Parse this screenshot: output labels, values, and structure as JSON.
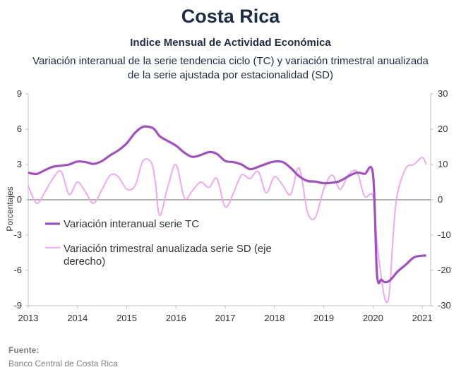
{
  "header": {
    "title": "Costa Rica",
    "subtitle": "Indice Mensual de  Actividad Económica",
    "description_line1": "Variación interanual de la serie tendencia ciclo (TC) y variación trimestral anualizada",
    "description_line2": "de la serie ajustada por estacionalidad (SD)"
  },
  "source": {
    "heading": "Fuente:",
    "text": "Banco Central de Costa Rica"
  },
  "colors": {
    "tc": "#a24fbf",
    "sd": "#f0a8f2",
    "zero_line": "#808080",
    "axis": "#bfbfbf"
  },
  "chart_data": {
    "type": "line",
    "ylabel": "Porcentajes",
    "x_ticks": [
      "2013",
      "2014",
      "2015",
      "2016",
      "2017",
      "2018",
      "2019",
      "2020",
      "2021"
    ],
    "xlim": [
      2013.0,
      2021.17
    ],
    "ylim_left": [
      -9,
      9
    ],
    "y_ticks_left": [
      "9",
      "6",
      "3",
      "0",
      "-3",
      "-6",
      "-9"
    ],
    "ylim_right": [
      -30,
      30
    ],
    "y_ticks_right": [
      "30",
      "20",
      "10",
      "0",
      "-10",
      "-20",
      "-30"
    ],
    "legend_position": "center-left",
    "series": [
      {
        "name": "Variación interanual serie TC",
        "axis": "left",
        "x": [
          2013.0,
          2013.17,
          2013.33,
          2013.5,
          2013.67,
          2013.83,
          2014.0,
          2014.17,
          2014.33,
          2014.5,
          2014.67,
          2014.83,
          2015.0,
          2015.17,
          2015.33,
          2015.5,
          2015.58,
          2015.67,
          2015.83,
          2016.0,
          2016.17,
          2016.33,
          2016.5,
          2016.67,
          2016.83,
          2017.0,
          2017.17,
          2017.33,
          2017.5,
          2017.67,
          2017.83,
          2018.0,
          2018.17,
          2018.33,
          2018.5,
          2018.67,
          2018.83,
          2019.0,
          2019.17,
          2019.33,
          2019.5,
          2019.67,
          2019.83,
          2020.0,
          2020.08,
          2020.17,
          2020.25,
          2020.33,
          2020.42,
          2020.5,
          2020.67,
          2020.83,
          2021.0,
          2021.08
        ],
        "values": [
          2.3,
          2.2,
          2.5,
          2.8,
          2.9,
          3.0,
          3.25,
          3.2,
          3.05,
          3.3,
          3.8,
          4.2,
          4.8,
          5.7,
          6.2,
          6.15,
          5.9,
          5.4,
          5.0,
          4.6,
          4.0,
          3.65,
          3.8,
          4.05,
          3.9,
          3.3,
          3.2,
          3.0,
          2.6,
          2.8,
          3.05,
          3.25,
          3.2,
          2.7,
          2.0,
          1.6,
          1.55,
          1.4,
          1.45,
          1.6,
          2.0,
          2.3,
          2.2,
          2.15,
          -6.3,
          -6.8,
          -7.0,
          -6.9,
          -6.5,
          -6.1,
          -5.5,
          -4.9,
          -4.75,
          -4.75
        ]
      },
      {
        "name": "Variación trimestral anualizada serie SD (eje derecho)",
        "axis": "right",
        "x": [
          2013.0,
          2013.17,
          2013.33,
          2013.5,
          2013.67,
          2013.83,
          2014.0,
          2014.17,
          2014.33,
          2014.5,
          2014.67,
          2014.83,
          2015.0,
          2015.17,
          2015.33,
          2015.5,
          2015.58,
          2015.67,
          2015.83,
          2016.0,
          2016.17,
          2016.33,
          2016.5,
          2016.67,
          2016.83,
          2017.0,
          2017.17,
          2017.33,
          2017.5,
          2017.67,
          2017.83,
          2018.0,
          2018.17,
          2018.33,
          2018.5,
          2018.67,
          2018.83,
          2019.0,
          2019.17,
          2019.33,
          2019.5,
          2019.67,
          2019.83,
          2020.0,
          2020.08,
          2020.17,
          2020.25,
          2020.33,
          2020.42,
          2020.5,
          2020.67,
          2020.83,
          2021.0,
          2021.08
        ],
        "values": [
          4.0,
          -1.0,
          2.0,
          6.0,
          8.0,
          1.5,
          5.0,
          2.0,
          -1.0,
          3.0,
          7.0,
          6.5,
          3.0,
          4.0,
          11.0,
          10.5,
          5.0,
          -4.5,
          3.5,
          10.0,
          0.5,
          2.5,
          5.0,
          3.5,
          6.0,
          -2.0,
          2.0,
          7.0,
          6.0,
          8.0,
          2.0,
          6.5,
          4.0,
          1.5,
          9.0,
          -3.5,
          -5.0,
          3.0,
          7.0,
          3.0,
          7.0,
          8.0,
          1.0,
          1.0,
          -12.0,
          -22.0,
          -28.5,
          -26.5,
          -8.0,
          2.0,
          9.0,
          10.0,
          12.0,
          10.0
        ]
      }
    ]
  }
}
